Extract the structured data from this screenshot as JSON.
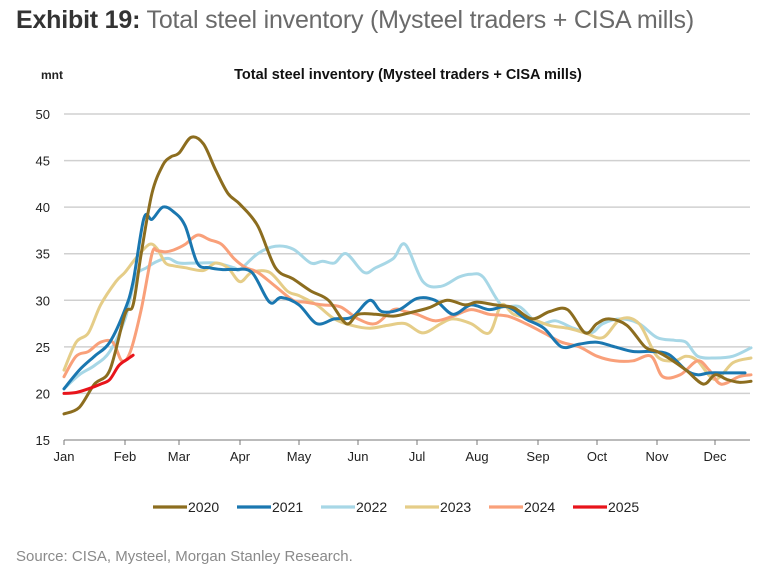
{
  "exhibit": {
    "label": "Exhibit 19:",
    "title": "Total steel inventory (Mysteel traders + CISA mills)"
  },
  "source": "Source: CISA, Mysteel, Morgan Stanley Research.",
  "chart_data": {
    "type": "line",
    "title": "Total steel inventory (Mysteel traders + CISA mills)",
    "ylabel": "mnt",
    "xlabel": "",
    "ylim": [
      15,
      50
    ],
    "yticks": [
      15,
      20,
      25,
      30,
      35,
      40,
      45,
      50
    ],
    "xlim": [
      0,
      11.6
    ],
    "xticks": [
      0,
      1,
      2,
      3,
      4,
      5,
      6,
      7,
      8,
      9,
      10,
      11
    ],
    "xticklabels": [
      "Jan",
      "Feb",
      "Mar",
      "Apr",
      "May",
      "Jun",
      "Jul",
      "Aug",
      "Sep",
      "Oct",
      "Nov",
      "Dec"
    ],
    "grid": true,
    "legend_position": "bottom",
    "x_unit": "months since Jan 1",
    "series": [
      {
        "name": "2020",
        "color": "#8c6d1f",
        "x": [
          0,
          0.25,
          0.5,
          0.75,
          1.0,
          1.15,
          1.3,
          1.5,
          1.7,
          1.85,
          2.0,
          2.2,
          2.4,
          2.6,
          2.8,
          3.0,
          3.3,
          3.6,
          3.9,
          4.2,
          4.5,
          4.8,
          5.0,
          5.3,
          5.6,
          5.9,
          6.2,
          6.5,
          6.8,
          7.0,
          7.3,
          7.6,
          7.9,
          8.2,
          8.5,
          8.8,
          9.0,
          9.2,
          9.5,
          9.8,
          10.0,
          10.2,
          10.5,
          10.8,
          11.0,
          11.2,
          11.4,
          11.6
        ],
        "values": [
          17.8,
          18.5,
          21.0,
          22.5,
          28.5,
          29.5,
          35.0,
          41.5,
          44.5,
          45.4,
          45.8,
          47.5,
          46.8,
          44.0,
          41.5,
          40.3,
          38.0,
          33.5,
          32.3,
          31.0,
          30.0,
          27.5,
          28.5,
          28.5,
          28.3,
          28.7,
          29.2,
          30.0,
          29.5,
          29.8,
          29.5,
          29.2,
          28.0,
          28.8,
          29.0,
          26.5,
          27.5,
          28.0,
          27.3,
          25.0,
          24.5,
          23.8,
          22.5,
          21.0,
          22.0,
          21.5,
          21.2,
          21.3
        ]
      },
      {
        "name": "2021",
        "color": "#1a77b0",
        "x": [
          0,
          0.25,
          0.5,
          0.75,
          1.0,
          1.15,
          1.35,
          1.5,
          1.7,
          1.9,
          2.1,
          2.3,
          2.5,
          2.7,
          2.9,
          3.2,
          3.5,
          3.7,
          4.0,
          4.3,
          4.6,
          4.9,
          5.2,
          5.4,
          5.7,
          6.0,
          6.3,
          6.6,
          6.9,
          7.2,
          7.5,
          7.8,
          8.1,
          8.4,
          8.7,
          9.0,
          9.3,
          9.6,
          9.9,
          10.2,
          10.5,
          10.7,
          10.9,
          11.2,
          11.5
        ],
        "values": [
          20.5,
          22.5,
          24.0,
          25.5,
          29.0,
          32.0,
          38.8,
          38.7,
          40.0,
          39.5,
          38.0,
          34.0,
          33.5,
          33.3,
          33.3,
          33.0,
          29.8,
          30.3,
          29.5,
          27.5,
          28.0,
          28.2,
          30.0,
          28.8,
          29.0,
          30.2,
          30.0,
          28.5,
          29.5,
          29.0,
          29.3,
          28.0,
          27.0,
          25.0,
          25.3,
          25.5,
          25.0,
          24.5,
          24.5,
          24.2,
          22.5,
          22.0,
          22.2,
          22.2,
          22.2
        ]
      },
      {
        "name": "2022",
        "color": "#a7d7e6",
        "x": [
          0,
          0.25,
          0.5,
          0.75,
          1.0,
          1.2,
          1.4,
          1.6,
          1.8,
          2.0,
          2.3,
          2.6,
          2.9,
          3.0,
          3.3,
          3.6,
          3.9,
          4.2,
          4.4,
          4.6,
          4.8,
          5.1,
          5.3,
          5.6,
          5.8,
          6.1,
          6.4,
          6.7,
          6.9,
          7.1,
          7.4,
          7.7,
          8.0,
          8.3,
          8.6,
          8.9,
          9.1,
          9.4,
          9.7,
          10.0,
          10.3,
          10.5,
          10.7,
          11.0,
          11.3,
          11.6
        ],
        "values": [
          20.5,
          22.0,
          23.0,
          24.5,
          28.0,
          32.5,
          33.5,
          34.2,
          34.5,
          34.0,
          34.0,
          34.0,
          33.5,
          33.3,
          35.0,
          35.8,
          35.5,
          34.0,
          34.2,
          34.0,
          35.0,
          33.0,
          33.5,
          34.5,
          36.0,
          32.0,
          31.5,
          32.5,
          32.8,
          32.5,
          29.5,
          29.3,
          27.5,
          27.8,
          27.0,
          26.5,
          27.5,
          28.0,
          27.5,
          26.0,
          25.7,
          25.5,
          24.0,
          23.8,
          24.0,
          24.9
        ]
      },
      {
        "name": "2023",
        "color": "#e5cd88",
        "x": [
          0,
          0.2,
          0.4,
          0.6,
          0.85,
          1.0,
          1.2,
          1.45,
          1.6,
          1.75,
          1.9,
          2.1,
          2.4,
          2.6,
          2.8,
          3.0,
          3.2,
          3.5,
          3.8,
          4.0,
          4.3,
          4.6,
          4.9,
          5.2,
          5.5,
          5.8,
          6.1,
          6.4,
          6.6,
          6.9,
          7.2,
          7.4,
          7.6,
          7.9,
          8.2,
          8.5,
          8.8,
          9.1,
          9.4,
          9.7,
          10.0,
          10.3,
          10.5,
          10.7,
          11.0,
          11.3,
          11.6
        ],
        "values": [
          22.5,
          25.5,
          26.5,
          29.5,
          32.0,
          33.0,
          34.5,
          36.0,
          35.5,
          34.0,
          33.7,
          33.5,
          33.2,
          34.0,
          33.5,
          32.0,
          33.0,
          33.0,
          31.0,
          30.5,
          29.5,
          28.0,
          27.3,
          27.0,
          27.3,
          27.5,
          26.5,
          27.5,
          28.0,
          27.5,
          26.5,
          29.5,
          28.5,
          28.0,
          27.3,
          27.0,
          26.5,
          26.0,
          28.0,
          27.5,
          24.0,
          23.5,
          24.0,
          23.5,
          21.5,
          23.3,
          23.8
        ]
      },
      {
        "name": "2024",
        "color": "#f9a07a",
        "x": [
          0,
          0.2,
          0.4,
          0.6,
          0.8,
          0.95,
          1.1,
          1.3,
          1.5,
          1.6,
          1.75,
          1.9,
          2.1,
          2.3,
          2.5,
          2.7,
          2.9,
          3.1,
          3.3,
          3.6,
          3.9,
          4.1,
          4.4,
          4.7,
          5.0,
          5.3,
          5.6,
          5.8,
          6.0,
          6.3,
          6.6,
          6.9,
          7.2,
          7.5,
          7.8,
          8.1,
          8.4,
          8.7,
          9.0,
          9.3,
          9.6,
          9.9,
          10.1,
          10.4,
          10.7,
          10.9,
          11.1,
          11.4,
          11.6
        ],
        "values": [
          21.8,
          24.0,
          24.5,
          25.5,
          25.5,
          23.5,
          24.5,
          29.0,
          35.0,
          35.3,
          35.2,
          35.4,
          36.0,
          37.0,
          36.5,
          36.0,
          34.5,
          33.5,
          33.0,
          31.5,
          30.0,
          29.8,
          29.5,
          29.3,
          28.0,
          27.5,
          29.0,
          28.8,
          28.5,
          27.8,
          28.3,
          29.0,
          28.5,
          28.3,
          27.5,
          26.5,
          25.5,
          25.0,
          24.0,
          23.5,
          23.5,
          24.0,
          21.8,
          22.0,
          23.5,
          22.5,
          21.0,
          21.8,
          22.0
        ]
      },
      {
        "name": "2025",
        "color": "#e8141b",
        "x": [
          0,
          0.2,
          0.4,
          0.6,
          0.75,
          0.9,
          1.05,
          1.15
        ],
        "values": [
          20.0,
          20.1,
          20.5,
          21.0,
          21.5,
          23.0,
          23.7,
          24.1
        ]
      }
    ]
  }
}
